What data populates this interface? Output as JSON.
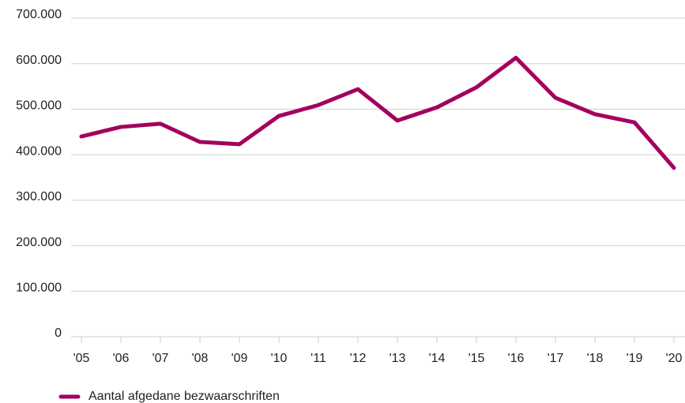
{
  "chart_data": {
    "type": "line",
    "categories": [
      "'05",
      "'06",
      "'07",
      "'08",
      "'09",
      "'10",
      "'11",
      "'12",
      "'13",
      "'14",
      "'15",
      "'16",
      "'17",
      "'18",
      "'19",
      "'20"
    ],
    "series": [
      {
        "name": "Aantal afgedane bezwaarschriften",
        "color": "#a3005f",
        "values": [
          440000,
          461000,
          468000,
          428000,
          423000,
          485000,
          509000,
          544000,
          475000,
          504000,
          548000,
          613000,
          525000,
          489000,
          471000,
          371000
        ]
      }
    ],
    "ylim": [
      0,
      700000
    ],
    "yticks": [
      0,
      {
        "value": 100000,
        "label": "100.000"
      },
      {
        "value": 200000,
        "label": "200.000"
      },
      {
        "value": 300000,
        "label": "300.000"
      },
      {
        "value": 400000,
        "label": "400.000"
      },
      {
        "value": 500000,
        "label": "500.000"
      },
      {
        "value": 600000,
        "label": "600.000"
      },
      {
        "value": 700000,
        "label": "700.000"
      }
    ],
    "grid": true,
    "legend": "bottom-left"
  }
}
